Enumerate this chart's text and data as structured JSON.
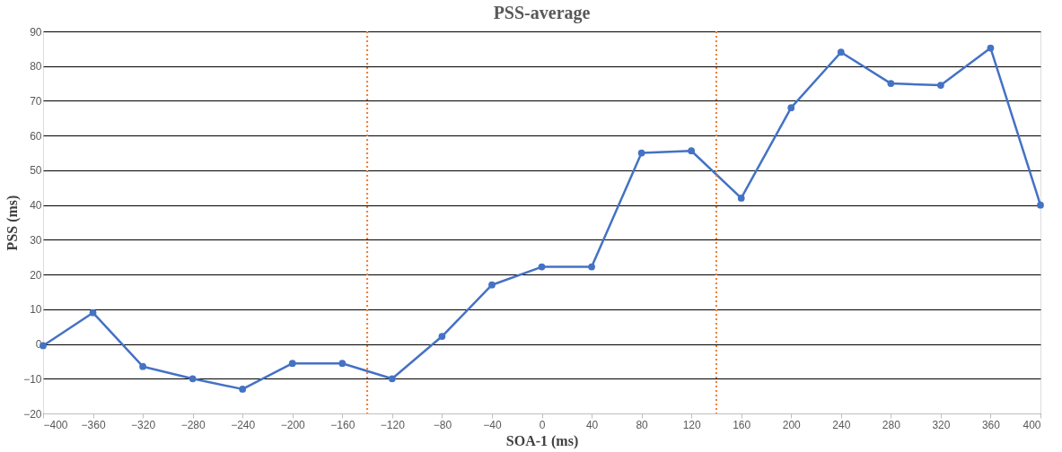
{
  "chart_data": {
    "type": "line",
    "title": "PSS-average",
    "xlabel": "SOA-1 (ms)",
    "ylabel": "PSS (ms)",
    "x": [
      -400,
      -360,
      -320,
      -280,
      -240,
      -200,
      -160,
      -120,
      -80,
      -40,
      0,
      40,
      80,
      120,
      160,
      200,
      240,
      280,
      320,
      360,
      400
    ],
    "series": [
      {
        "color": "#4472c4",
        "values": [
          -0.5,
          9,
          -6.5,
          -10,
          -13,
          -5.6,
          -5.6,
          -10,
          2.2,
          17,
          22.2,
          22.2,
          55,
          55.6,
          42,
          68,
          84,
          75,
          74.5,
          85.2,
          40
        ]
      }
    ],
    "xlim": [
      -400,
      400
    ],
    "xticks": [
      -400,
      -360,
      -320,
      -280,
      -240,
      -200,
      -160,
      -120,
      -80,
      -40,
      0,
      40,
      80,
      120,
      160,
      200,
      240,
      280,
      320,
      360,
      400
    ],
    "ylim": [
      -20,
      90
    ],
    "yticks": [
      -20,
      -10,
      0,
      10,
      20,
      30,
      40,
      50,
      60,
      70,
      80,
      90
    ],
    "ref_lines": [
      {
        "axis": "x",
        "value": -140,
        "color": "#ed7d31",
        "line_style": "dotted"
      },
      {
        "axis": "x",
        "value": 140,
        "color": "#ed7d31",
        "line_style": "dotted"
      }
    ],
    "grid": "y",
    "marker": "circle",
    "line_style": "solid"
  }
}
